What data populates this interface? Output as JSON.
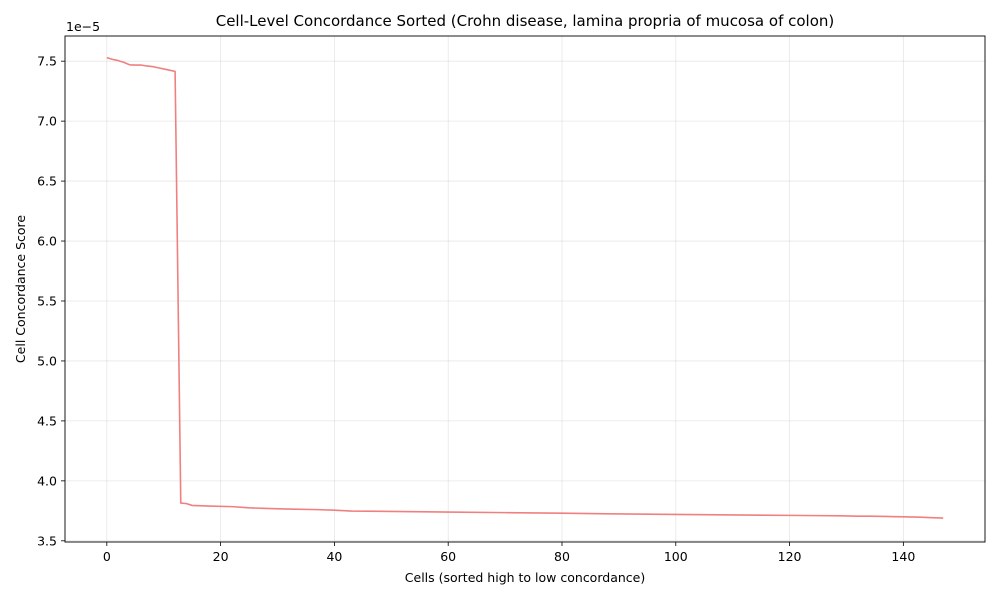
{
  "chart_data": {
    "type": "line",
    "title": "Cell-Level Concordance Sorted (Crohn disease, lamina propria of mucosa of colon)",
    "xlabel": "Cells (sorted high to low concordance)",
    "ylabel": "Cell Concordance Score",
    "offset_label": "1e−5",
    "xlim": [
      -7.35,
      154.35
    ],
    "ylim": [
      3.49,
      7.71
    ],
    "x_ticks": [
      0,
      20,
      40,
      60,
      80,
      100,
      120,
      140
    ],
    "y_ticks": [
      3.5,
      4.0,
      4.5,
      5.0,
      5.5,
      6.0,
      6.5,
      7.0,
      7.5
    ],
    "x_tick_labels": [
      "0",
      "20",
      "40",
      "60",
      "80",
      "100",
      "120",
      "140"
    ],
    "y_tick_labels": [
      "3.5",
      "4.0",
      "4.5",
      "5.0",
      "5.5",
      "6.0",
      "6.5",
      "7.0",
      "7.5"
    ],
    "grid": true,
    "line_color": "#f08080",
    "series": [
      {
        "x": [
          0,
          1,
          2,
          3,
          4,
          5,
          6,
          7,
          8,
          9,
          10,
          11,
          12,
          13,
          14,
          15,
          18,
          22,
          25,
          28,
          32,
          37,
          40,
          43,
          50,
          60,
          70,
          80,
          88,
          95,
          100,
          105,
          110,
          115,
          120,
          125,
          129,
          132,
          134,
          137,
          140,
          143,
          145,
          147
        ],
        "y": [
          7.53,
          7.515,
          7.505,
          7.49,
          7.47,
          7.468,
          7.468,
          7.46,
          7.455,
          7.445,
          7.435,
          7.425,
          7.415,
          3.815,
          3.81,
          3.795,
          3.79,
          3.785,
          3.775,
          3.77,
          3.765,
          3.76,
          3.755,
          3.748,
          3.745,
          3.74,
          3.735,
          3.73,
          3.725,
          3.722,
          3.72,
          3.718,
          3.716,
          3.714,
          3.712,
          3.71,
          3.708,
          3.705,
          3.705,
          3.703,
          3.7,
          3.697,
          3.693,
          3.69
        ]
      }
    ]
  }
}
